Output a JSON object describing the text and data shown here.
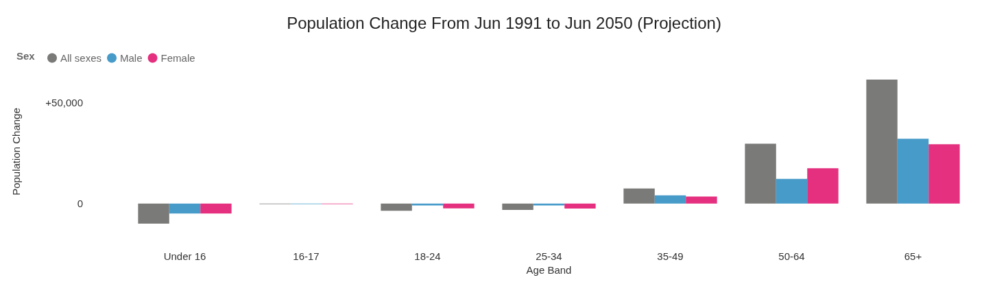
{
  "chart_data": {
    "type": "bar",
    "title": "Population Change From Jun 1991 to Jun 2050 (Projection)",
    "xlabel": "Age Band",
    "ylabel": "Population Change",
    "legend_title": "Sex",
    "legend": "top left",
    "grid": false,
    "categories": [
      "Under 16",
      "16-17",
      "18-24",
      "25-34",
      "35-49",
      "50-64",
      "65+"
    ],
    "series": [
      {
        "name": "All sexes",
        "color": "#7a7a78",
        "values": [
          -10000,
          -300,
          -3600,
          -3200,
          7400,
          29600,
          61300
        ]
      },
      {
        "name": "Male",
        "color": "#479bc9",
        "values": [
          -5000,
          -300,
          -1000,
          -1000,
          4000,
          12200,
          32000
        ]
      },
      {
        "name": "Female",
        "color": "#e5307f",
        "values": [
          -5000,
          -300,
          -2400,
          -2500,
          3400,
          17400,
          29300
        ]
      }
    ],
    "ylim": [
      -10000,
      61300
    ],
    "yticks": [
      0,
      {
        "value": 50000,
        "label": "+50,000"
      }
    ]
  }
}
